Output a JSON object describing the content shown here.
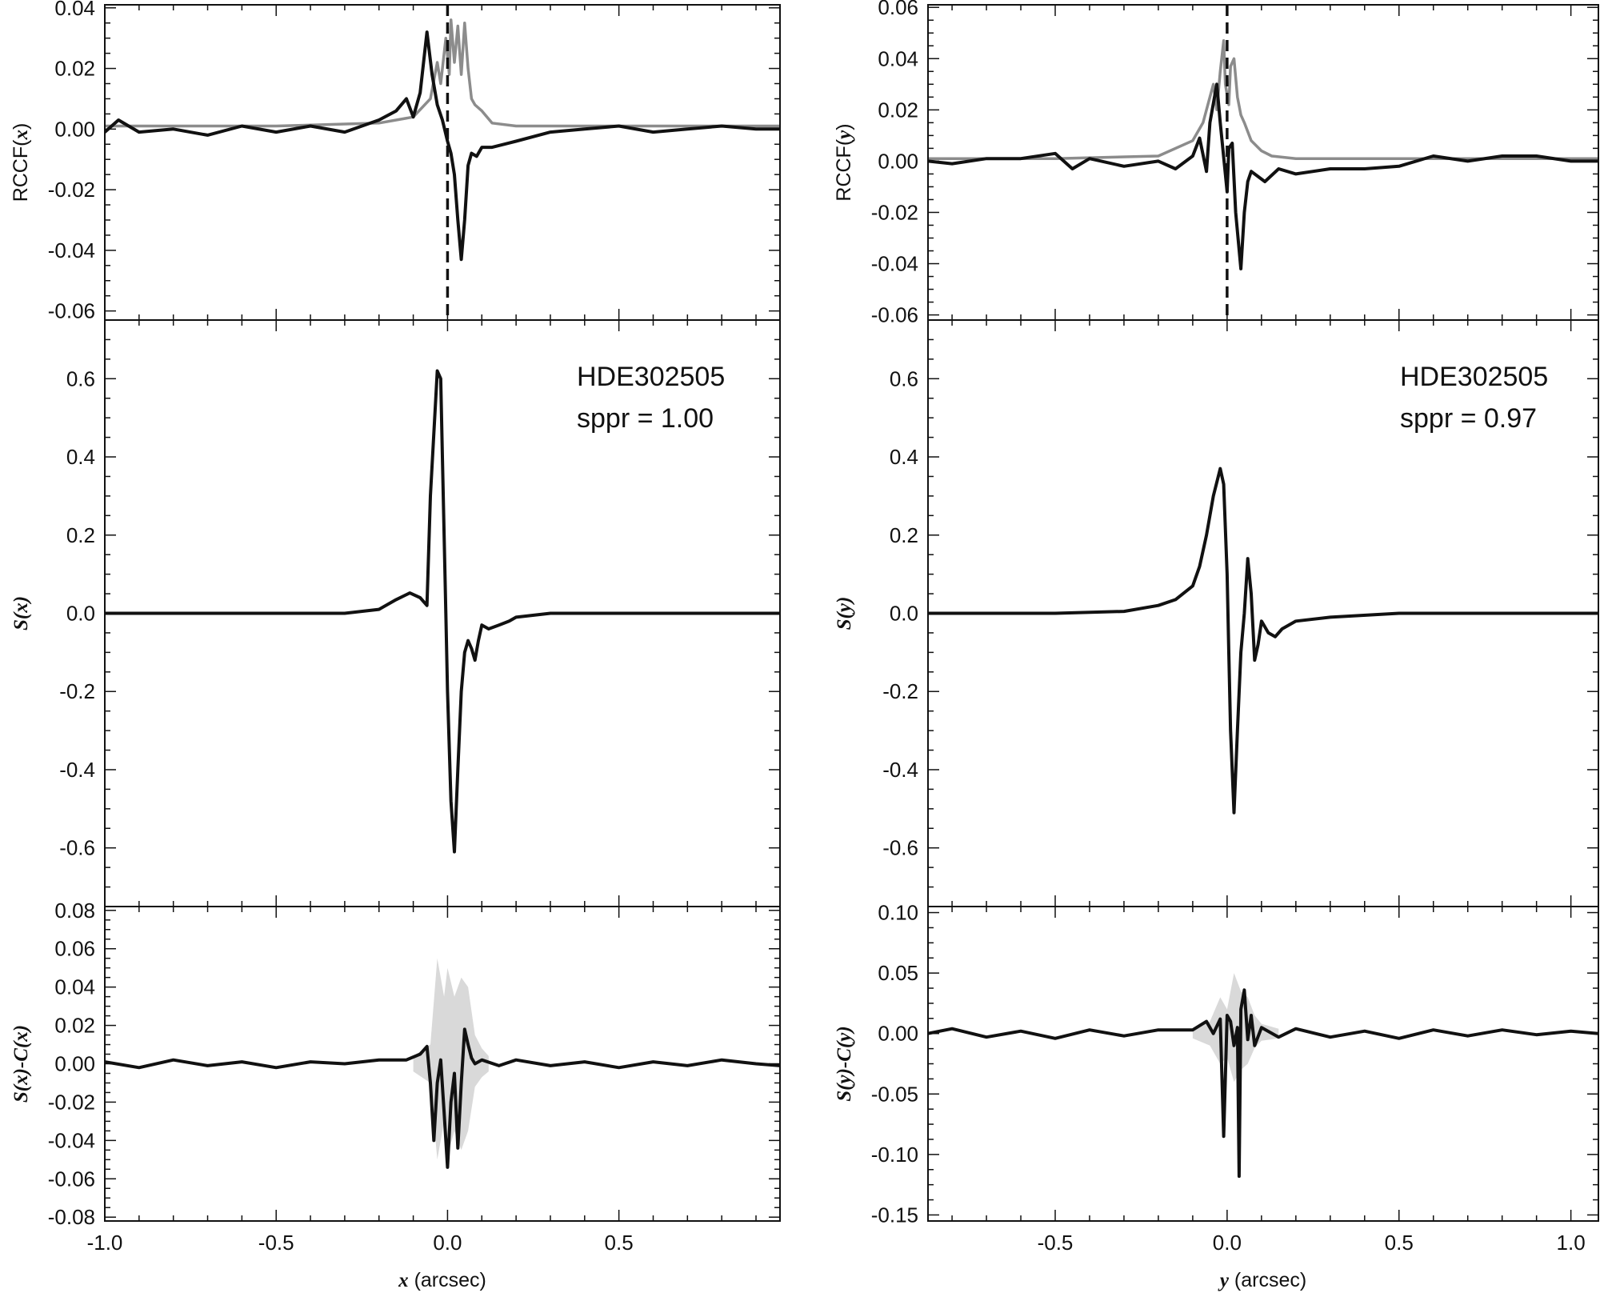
{
  "colors": {
    "primary": "#111111",
    "secondary": "#8c8c8c",
    "band": "#d9d9d9"
  },
  "chart_data": [
    {
      "type": "line",
      "id": "top-left",
      "ylabel_parts": [
        [
          "RCCF(",
          false
        ],
        [
          "x",
          true
        ],
        [
          ")",
          false
        ]
      ],
      "xlim": [
        -1.0,
        0.97
      ],
      "ylim": [
        -0.063,
        0.041
      ],
      "xticks": [],
      "xticklabels": [],
      "yticks": [
        0.04,
        0.02,
        0.0,
        -0.02,
        -0.04,
        -0.06
      ],
      "yticklabels": [
        "0.04",
        "0.02",
        "0.00",
        "-0.02",
        "-0.04",
        "-0.06"
      ],
      "vline": 0.0,
      "series": [
        {
          "role": "primary",
          "x": [
            -1.0,
            -0.96,
            -0.9,
            -0.8,
            -0.7,
            -0.6,
            -0.5,
            -0.4,
            -0.3,
            -0.2,
            -0.15,
            -0.12,
            -0.1,
            -0.08,
            -0.06,
            -0.045,
            -0.03,
            -0.015,
            0.0,
            0.01,
            0.02,
            0.03,
            0.04,
            0.05,
            0.06,
            0.07,
            0.085,
            0.1,
            0.13,
            0.2,
            0.3,
            0.4,
            0.5,
            0.6,
            0.7,
            0.8,
            0.9,
            0.97
          ],
          "y": [
            -0.001,
            0.003,
            -0.001,
            0.0,
            -0.002,
            0.001,
            -0.001,
            0.001,
            -0.001,
            0.003,
            0.006,
            0.01,
            0.004,
            0.012,
            0.032,
            0.018,
            0.008,
            0.003,
            -0.004,
            -0.008,
            -0.015,
            -0.03,
            -0.043,
            -0.03,
            -0.012,
            -0.008,
            -0.009,
            -0.006,
            -0.006,
            -0.004,
            -0.001,
            0.0,
            0.001,
            -0.001,
            0.0,
            0.001,
            0.0,
            0.0
          ]
        },
        {
          "role": "secondary",
          "x": [
            -1.0,
            -0.8,
            -0.5,
            -0.2,
            -0.1,
            -0.05,
            -0.03,
            -0.02,
            -0.005,
            0.005,
            0.01,
            0.02,
            0.03,
            0.04,
            0.05,
            0.06,
            0.07,
            0.08,
            0.1,
            0.13,
            0.2,
            0.5,
            0.97
          ],
          "y": [
            0.001,
            0.001,
            0.001,
            0.002,
            0.004,
            0.01,
            0.022,
            0.015,
            0.03,
            0.018,
            0.036,
            0.022,
            0.034,
            0.018,
            0.035,
            0.02,
            0.01,
            0.008,
            0.006,
            0.002,
            0.001,
            0.001,
            0.001
          ]
        }
      ]
    },
    {
      "type": "line",
      "id": "mid-left",
      "ylabel_parts": [
        [
          "S(",
          true
        ],
        [
          "x",
          true
        ],
        [
          ")",
          true
        ]
      ],
      "xlim": [
        -1.0,
        0.97
      ],
      "ylim": [
        -0.75,
        0.75
      ],
      "xticks": [],
      "xticklabels": [],
      "yticks": [
        0.6,
        0.4,
        0.2,
        0.0,
        -0.2,
        -0.4,
        -0.6
      ],
      "yticklabels": [
        "0.6",
        "0.4",
        "0.2",
        "0.0",
        "-0.2",
        "-0.4",
        "-0.6"
      ],
      "annotation": [
        "HDE302505",
        "sppr = 1.00"
      ],
      "series": [
        {
          "role": "primary",
          "x": [
            -1.0,
            -0.5,
            -0.3,
            -0.2,
            -0.15,
            -0.11,
            -0.08,
            -0.06,
            -0.05,
            -0.03,
            -0.02,
            -0.015,
            -0.005,
            0.0,
            0.01,
            0.02,
            0.03,
            0.04,
            0.05,
            0.06,
            0.07,
            0.08,
            0.09,
            0.1,
            0.12,
            0.15,
            0.18,
            0.2,
            0.3,
            0.5,
            0.97
          ],
          "y": [
            0.0,
            0.0,
            0.0,
            0.01,
            0.035,
            0.052,
            0.04,
            0.02,
            0.3,
            0.62,
            0.6,
            0.4,
            0.0,
            -0.2,
            -0.48,
            -0.61,
            -0.4,
            -0.2,
            -0.1,
            -0.07,
            -0.09,
            -0.12,
            -0.07,
            -0.03,
            -0.04,
            -0.03,
            -0.02,
            -0.01,
            0.0,
            0.0,
            0.0
          ]
        }
      ]
    },
    {
      "type": "line",
      "id": "bottom-left",
      "ylabel_parts": [
        [
          "S(",
          true
        ],
        [
          "x",
          true
        ],
        [
          ")-C(",
          true
        ],
        [
          "x",
          true
        ],
        [
          ")",
          true
        ]
      ],
      "xlim": [
        -1.0,
        0.97
      ],
      "ylim": [
        -0.082,
        0.082
      ],
      "xticks": [
        -1.0,
        -0.5,
        0.0,
        0.5
      ],
      "xticklabels": [
        "-1.0",
        "-0.5",
        "0.0",
        "0.5"
      ],
      "yticks": [
        0.08,
        0.06,
        0.04,
        0.02,
        0.0,
        -0.02,
        -0.04,
        -0.06,
        -0.08
      ],
      "yticklabels": [
        "0.08",
        "0.06",
        "0.04",
        "0.02",
        "0.00",
        "-0.02",
        "-0.04",
        "-0.06",
        "-0.08"
      ],
      "xlabel_parts": [
        [
          "x",
          true
        ],
        [
          " (arcsec)",
          false
        ]
      ],
      "band": {
        "x": [
          -0.1,
          -0.05,
          -0.03,
          -0.01,
          0.0,
          0.02,
          0.04,
          0.06,
          0.08,
          0.1,
          0.12
        ],
        "upper": [
          0.004,
          0.01,
          0.055,
          0.035,
          0.05,
          0.035,
          0.045,
          0.04,
          0.015,
          0.008,
          0.004
        ],
        "lower": [
          -0.004,
          -0.01,
          -0.05,
          -0.03,
          -0.048,
          -0.035,
          -0.045,
          -0.035,
          -0.012,
          -0.007,
          -0.004
        ]
      },
      "series": [
        {
          "role": "primary",
          "x": [
            -1.0,
            -0.9,
            -0.8,
            -0.7,
            -0.6,
            -0.5,
            -0.4,
            -0.3,
            -0.2,
            -0.12,
            -0.08,
            -0.06,
            -0.05,
            -0.04,
            -0.03,
            -0.02,
            -0.01,
            0.0,
            0.01,
            0.02,
            0.03,
            0.04,
            0.05,
            0.06,
            0.07,
            0.08,
            0.1,
            0.15,
            0.2,
            0.3,
            0.4,
            0.5,
            0.6,
            0.7,
            0.8,
            0.9,
            0.97
          ],
          "y": [
            0.001,
            -0.002,
            0.002,
            -0.001,
            0.001,
            -0.002,
            0.001,
            0.0,
            0.002,
            0.002,
            0.005,
            0.009,
            -0.01,
            -0.04,
            -0.01,
            0.002,
            -0.025,
            -0.054,
            -0.02,
            -0.005,
            -0.044,
            -0.01,
            0.018,
            0.01,
            0.003,
            0.0,
            0.002,
            -0.001,
            0.002,
            -0.001,
            0.001,
            -0.002,
            0.001,
            -0.001,
            0.002,
            0.0,
            -0.001
          ]
        }
      ]
    },
    {
      "type": "line",
      "id": "top-right",
      "ylabel_parts": [
        [
          "RCCF(",
          false
        ],
        [
          "y",
          true
        ],
        [
          ")",
          false
        ]
      ],
      "xlim": [
        -0.87,
        1.08
      ],
      "ylim": [
        -0.062,
        0.061
      ],
      "xticks": [],
      "xticklabels": [],
      "yticks": [
        0.06,
        0.04,
        0.02,
        0.0,
        -0.02,
        -0.04,
        -0.06
      ],
      "yticklabels": [
        "0.06",
        "0.04",
        "0.02",
        "0.00",
        "-0.02",
        "-0.04",
        "-0.06"
      ],
      "vline": 0.0,
      "series": [
        {
          "role": "primary",
          "x": [
            -0.87,
            -0.8,
            -0.7,
            -0.6,
            -0.5,
            -0.45,
            -0.4,
            -0.3,
            -0.2,
            -0.15,
            -0.1,
            -0.08,
            -0.06,
            -0.05,
            -0.03,
            -0.02,
            -0.005,
            0.0,
            0.005,
            0.015,
            0.025,
            0.04,
            0.05,
            0.06,
            0.07,
            0.09,
            0.11,
            0.15,
            0.2,
            0.3,
            0.4,
            0.5,
            0.6,
            0.7,
            0.8,
            0.9,
            1.0,
            1.08
          ],
          "y": [
            0.0,
            -0.001,
            0.001,
            0.001,
            0.003,
            -0.003,
            0.001,
            -0.002,
            0.0,
            -0.003,
            0.002,
            0.009,
            -0.004,
            0.015,
            0.03,
            0.015,
            -0.005,
            -0.012,
            0.005,
            0.007,
            -0.02,
            -0.042,
            -0.02,
            -0.008,
            -0.004,
            -0.006,
            -0.008,
            -0.003,
            -0.005,
            -0.003,
            -0.003,
            -0.002,
            0.002,
            0.0,
            0.002,
            0.002,
            0.0,
            0.0
          ]
        },
        {
          "role": "secondary",
          "x": [
            -0.87,
            -0.5,
            -0.2,
            -0.1,
            -0.07,
            -0.04,
            -0.03,
            -0.02,
            -0.01,
            -0.005,
            0.005,
            0.01,
            0.02,
            0.03,
            0.04,
            0.05,
            0.07,
            0.1,
            0.13,
            0.2,
            0.5,
            1.08
          ],
          "y": [
            0.001,
            0.001,
            0.002,
            0.008,
            0.015,
            0.03,
            0.02,
            0.035,
            0.047,
            0.03,
            0.022,
            0.037,
            0.04,
            0.025,
            0.018,
            0.015,
            0.008,
            0.004,
            0.002,
            0.001,
            0.001,
            0.001
          ]
        }
      ]
    },
    {
      "type": "line",
      "id": "mid-right",
      "ylabel_parts": [
        [
          "S(",
          true
        ],
        [
          "y",
          true
        ],
        [
          ")",
          true
        ]
      ],
      "xlim": [
        -0.87,
        1.08
      ],
      "ylim": [
        -0.75,
        0.75
      ],
      "xticks": [],
      "xticklabels": [],
      "yticks": [
        0.6,
        0.4,
        0.2,
        0.0,
        -0.2,
        -0.4,
        -0.6
      ],
      "yticklabels": [
        "0.6",
        "0.4",
        "0.2",
        "0.0",
        "-0.2",
        "-0.4",
        "-0.6"
      ],
      "annotation": [
        "HDE302505",
        "sppr = 0.97"
      ],
      "series": [
        {
          "role": "primary",
          "x": [
            -0.87,
            -0.5,
            -0.3,
            -0.2,
            -0.15,
            -0.1,
            -0.08,
            -0.06,
            -0.04,
            -0.02,
            -0.01,
            0.0,
            0.005,
            0.01,
            0.02,
            0.03,
            0.04,
            0.05,
            0.06,
            0.07,
            0.08,
            0.09,
            0.1,
            0.12,
            0.14,
            0.16,
            0.2,
            0.3,
            0.5,
            1.08
          ],
          "y": [
            0.0,
            0.0,
            0.005,
            0.02,
            0.035,
            0.07,
            0.12,
            0.2,
            0.3,
            0.37,
            0.33,
            0.1,
            -0.1,
            -0.3,
            -0.51,
            -0.3,
            -0.1,
            0.0,
            0.14,
            0.05,
            -0.12,
            -0.08,
            -0.02,
            -0.05,
            -0.06,
            -0.04,
            -0.02,
            -0.01,
            0.0,
            0.0
          ]
        }
      ]
    },
    {
      "type": "line",
      "id": "bottom-right",
      "ylabel_parts": [
        [
          "S(",
          true
        ],
        [
          "y",
          true
        ],
        [
          ")-C(",
          true
        ],
        [
          "y",
          true
        ],
        [
          ")",
          true
        ]
      ],
      "xlim": [
        -0.87,
        1.08
      ],
      "ylim": [
        -0.155,
        0.105
      ],
      "xticks": [
        -0.5,
        0.0,
        0.5,
        1.0
      ],
      "xticklabels": [
        "-0.5",
        "0.0",
        "0.5",
        "1.0"
      ],
      "yticks": [
        0.1,
        0.05,
        0.0,
        -0.05,
        -0.1,
        -0.15
      ],
      "yticklabels": [
        "0.10",
        "0.05",
        "0.00",
        "-0.05",
        "-0.10",
        "-0.15"
      ],
      "xlabel_parts": [
        [
          "y",
          true
        ],
        [
          " (arcsec)",
          false
        ]
      ],
      "band": {
        "x": [
          -0.1,
          -0.05,
          -0.02,
          0.0,
          0.02,
          0.04,
          0.06,
          0.08,
          0.1,
          0.15
        ],
        "upper": [
          0.004,
          0.01,
          0.03,
          0.02,
          0.05,
          0.035,
          0.03,
          0.015,
          0.008,
          0.004
        ],
        "lower": [
          -0.004,
          -0.01,
          -0.025,
          -0.02,
          -0.04,
          -0.03,
          -0.025,
          -0.012,
          -0.006,
          -0.004
        ]
      },
      "series": [
        {
          "role": "primary",
          "x": [
            -0.87,
            -0.8,
            -0.7,
            -0.6,
            -0.5,
            -0.4,
            -0.3,
            -0.2,
            -0.1,
            -0.06,
            -0.04,
            -0.02,
            -0.01,
            0.0,
            0.01,
            0.02,
            0.03,
            0.035,
            0.04,
            0.05,
            0.06,
            0.07,
            0.08,
            0.1,
            0.15,
            0.2,
            0.3,
            0.4,
            0.5,
            0.6,
            0.7,
            0.8,
            0.9,
            1.0,
            1.08
          ],
          "y": [
            0.0,
            0.004,
            -0.003,
            0.002,
            -0.004,
            0.003,
            -0.002,
            0.003,
            0.003,
            0.01,
            0.0,
            0.012,
            -0.085,
            0.015,
            0.01,
            -0.01,
            0.005,
            -0.118,
            0.02,
            0.036,
            -0.005,
            0.015,
            -0.01,
            0.005,
            -0.003,
            0.004,
            -0.003,
            0.002,
            -0.004,
            0.003,
            -0.002,
            0.003,
            -0.001,
            0.002,
            0.0
          ]
        }
      ]
    }
  ]
}
